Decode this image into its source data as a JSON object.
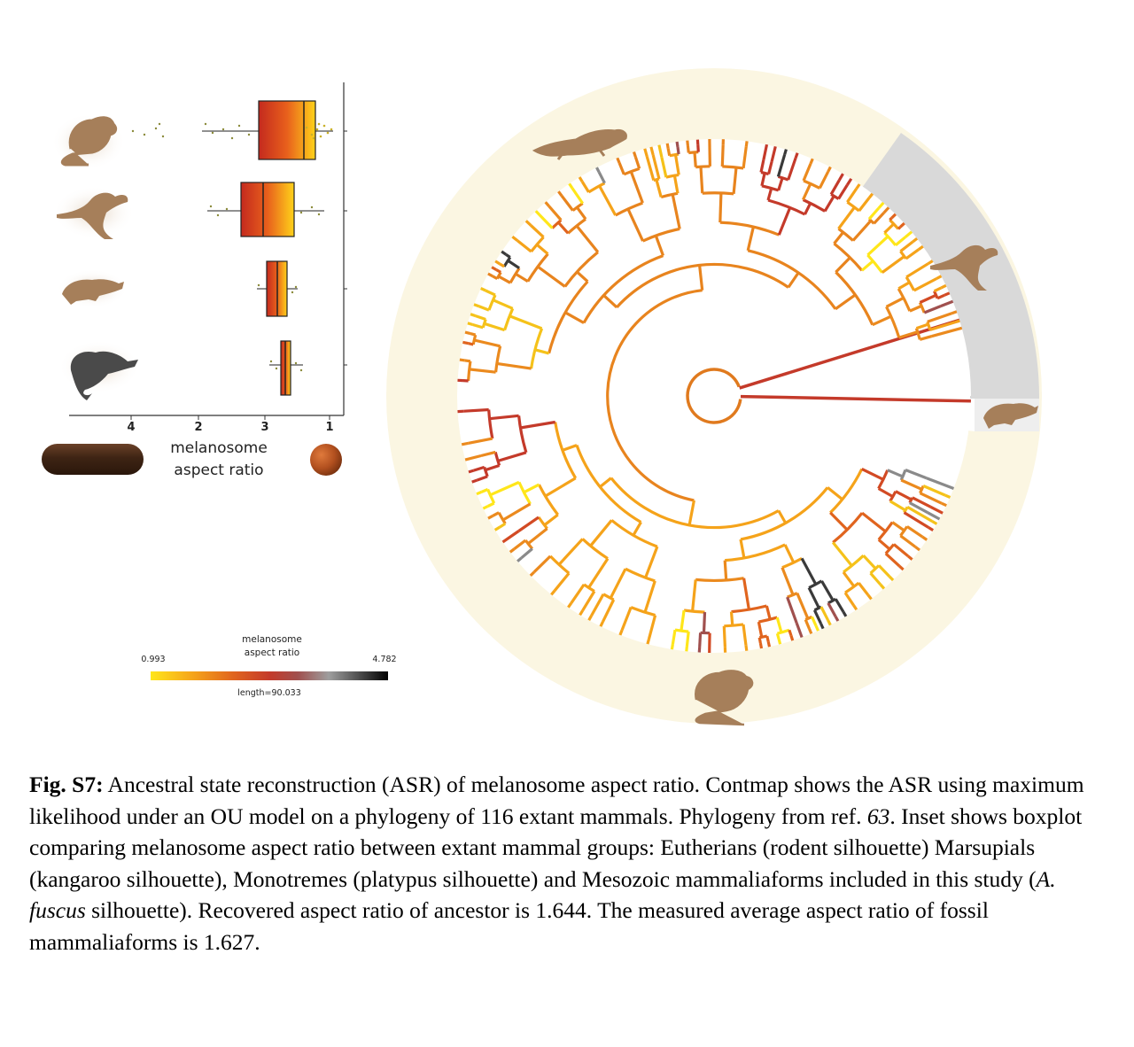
{
  "figure": {
    "boxplot": {
      "ticks": [
        "4",
        "2",
        "3",
        "1"
      ],
      "axis_title_line1": "melanosome",
      "axis_title_line2": "aspect ratio",
      "groups": [
        "rodent",
        "kangaroo",
        "platypus",
        "A. fuscus"
      ]
    },
    "colorbar": {
      "title_line1": "melanosome",
      "title_line2": "aspect ratio",
      "min_label": "0.993",
      "max_label": "4.782",
      "length_label": "length=90.033",
      "colors": [
        "#ffe61a",
        "#f5a31a",
        "#e0641e",
        "#c43a2a",
        "#a0504e",
        "#9e9e9e",
        "#000000"
      ]
    },
    "tree": {
      "background_color": "#fbf6e2",
      "highlight_color": "#d9d9d9"
    }
  },
  "caption": {
    "label": "Fig. S7:",
    "part1": " Ancestral state reconstruction (ASR) of melanosome aspect ratio.  Contmap shows the ASR using maximum likelihood under an OU model on a phylogeny of 116 extant mammals. Phylogeny from ref. ",
    "ref": "63",
    "part2": ". Inset shows boxplot comparing melanosome aspect ratio between extant mammal groups: Eutherians (rodent silhouette) Marsupials (kangaroo silhouette), Monotremes (platypus silhouette) and Mesozoic mammaliaforms included in this study (",
    "species": "A. fuscus",
    "part3": " silhouette). Recovered aspect ratio of ancestor is 1.644.  The measured average aspect ratio of fossil mammaliaforms is 1.627."
  }
}
